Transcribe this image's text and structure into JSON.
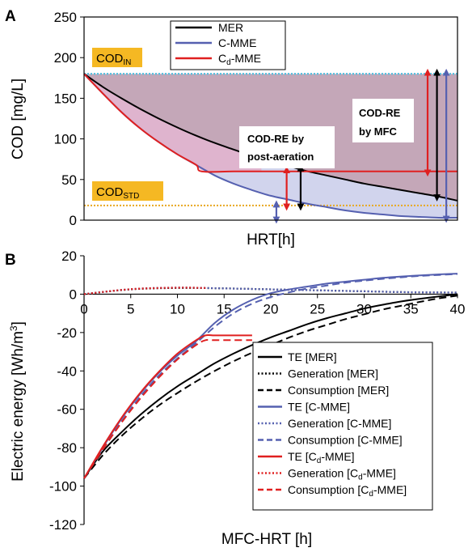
{
  "chart_data": [
    {
      "panel": "A",
      "type": "line",
      "xlabel": "HRT[h]",
      "ylabel": "COD [mg/L]",
      "xlim": [
        0,
        40
      ],
      "ylim": [
        0,
        250
      ],
      "yticks": [
        0,
        50,
        100,
        150,
        200,
        250
      ],
      "grid": false,
      "legend_position": "top-center",
      "cod_in": {
        "label": "COD",
        "sub": "IN",
        "value": 180,
        "color": "#5bc0de"
      },
      "cod_std": {
        "label": "COD",
        "sub": "STD",
        "value": 18,
        "color": "#e8a820"
      },
      "annotations": [
        {
          "lines": [
            "COD-RE by",
            "post-aeration"
          ]
        },
        {
          "lines": [
            "COD-RE",
            "by MFC"
          ]
        }
      ],
      "series": [
        {
          "name": "MER",
          "color": "#000000",
          "x": [
            0,
            2,
            4,
            6,
            8,
            10,
            12,
            14,
            16,
            18,
            20,
            22,
            24,
            26,
            28,
            30,
            32,
            34,
            36,
            38,
            40
          ],
          "y": [
            180,
            164,
            150,
            137,
            125,
            114,
            104,
            95,
            87,
            79,
            72,
            66,
            60,
            55,
            50,
            45,
            41,
            37,
            33,
            29,
            24
          ]
        },
        {
          "name": "C-MME",
          "color": "#5560b0",
          "x": [
            0,
            2,
            4,
            6,
            8,
            10,
            12,
            14,
            16,
            18,
            20,
            22,
            24,
            26,
            28,
            30,
            32,
            34,
            36,
            38,
            40
          ],
          "y": [
            180,
            156,
            133,
            113,
            96,
            81,
            68,
            55,
            45,
            37,
            30,
            25,
            20,
            16,
            12,
            9,
            7,
            5,
            4,
            3,
            3
          ]
        },
        {
          "name": "C",
          "sub": "d",
          "suffix": "-MME",
          "color": "#e02020",
          "x": [
            0,
            2,
            4,
            6,
            8,
            10,
            12,
            12.6,
            16,
            20,
            24,
            28,
            32,
            36,
            40
          ],
          "y": [
            180,
            156,
            133,
            113,
            96,
            81,
            68,
            60,
            60,
            60,
            60,
            60,
            60,
            60,
            60
          ]
        }
      ]
    },
    {
      "panel": "B",
      "type": "line",
      "xlabel": "MFC-HRT [h]",
      "ylabel": "Electric energy [Wh/m",
      "ylabel_sup": "3",
      "ylabel_end": "]",
      "xlim": [
        0,
        40
      ],
      "ylim": [
        -120,
        20
      ],
      "xticks": [
        0,
        5,
        10,
        15,
        20,
        25,
        30,
        35,
        40
      ],
      "yticks": [
        20,
        0,
        -20,
        -40,
        -60,
        -80,
        -100,
        -120
      ],
      "grid": false,
      "legend_position": "bottom-right",
      "series": [
        {
          "name": "TE [MER]",
          "color": "#000000",
          "dash": "solid",
          "x": [
            0,
            2,
            4,
            6,
            8,
            10,
            12,
            14,
            16,
            18,
            20,
            22,
            24,
            26,
            28,
            30,
            32,
            34,
            36,
            38,
            40
          ],
          "y": [
            -96,
            -82,
            -72,
            -63,
            -55,
            -48,
            -42,
            -36,
            -31,
            -26.5,
            -22.5,
            -19,
            -15.5,
            -12.5,
            -10,
            -7.5,
            -5.5,
            -3.8,
            -2.4,
            -1.2,
            0
          ]
        },
        {
          "name": "Generation [MER]",
          "color": "#000000",
          "dash": "dotted",
          "x": [
            0,
            5,
            10,
            15,
            20,
            25,
            30,
            35,
            40
          ],
          "y": [
            0,
            2.5,
            3.2,
            3,
            2.5,
            2,
            1.5,
            1,
            0.8
          ]
        },
        {
          "name": "Consumption  [MER]",
          "color": "#000000",
          "dash": "dashed",
          "x": [
            0,
            2,
            4,
            6,
            8,
            10,
            12,
            14,
            16,
            18,
            20,
            22,
            24,
            26,
            28,
            30,
            32,
            34,
            36,
            38,
            40
          ],
          "y": [
            -96,
            -84,
            -74,
            -65.5,
            -58,
            -51.5,
            -45.5,
            -40,
            -35,
            -30.5,
            -26.5,
            -22.5,
            -19,
            -16,
            -13,
            -10.5,
            -8,
            -6,
            -4,
            -2.2,
            -0.8
          ]
        },
        {
          "name": "TE [C-MME]",
          "color": "#5560b0",
          "dash": "solid",
          "x": [
            0,
            2,
            4,
            6,
            8,
            10,
            12,
            14,
            16,
            18,
            20,
            22,
            24,
            26,
            28,
            30,
            32,
            34,
            36,
            38,
            40
          ],
          "y": [
            -96,
            -80,
            -65,
            -52,
            -41,
            -32,
            -24.5,
            -15,
            -8,
            -3,
            0.5,
            2.5,
            4,
            5.5,
            6.5,
            7.5,
            8.5,
            9.2,
            9.8,
            10.3,
            10.7
          ]
        },
        {
          "name": "Generation [C-MME]",
          "color": "#5560b0",
          "dash": "dotted",
          "x": [
            0,
            5,
            10,
            15,
            20,
            25,
            30,
            35,
            40
          ],
          "y": [
            0,
            2.6,
            3.4,
            3,
            2.5,
            2,
            1.5,
            1,
            0.8
          ]
        },
        {
          "name": "Consumption [C-MME]",
          "color": "#5560b0",
          "dash": "dashed",
          "x": [
            0,
            2,
            4,
            6,
            8,
            10,
            12,
            14,
            16,
            18,
            20,
            22,
            24,
            26,
            28,
            30,
            32,
            34,
            36,
            38,
            40
          ],
          "y": [
            -96,
            -81,
            -66.5,
            -53.5,
            -42.5,
            -33.5,
            -25.5,
            -17,
            -10,
            -5,
            -1.5,
            1,
            3,
            4.5,
            6,
            7,
            8,
            8.8,
            9.5,
            10,
            10.5
          ]
        },
        {
          "name": "TE [C",
          "sub": "d",
          "suffix": "-MME]",
          "color": "#e02020",
          "dash": "solid",
          "x": [
            0,
            2,
            4,
            6,
            8,
            10,
            12,
            13,
            14,
            16,
            18
          ],
          "y": [
            -96,
            -79.5,
            -64.5,
            -51.5,
            -40.5,
            -31,
            -24,
            -21.5,
            -21.5,
            -21.5,
            -21.5
          ]
        },
        {
          "name": "Generation [C",
          "sub": "d",
          "suffix": "-MME]",
          "color": "#e02020",
          "dash": "dotted",
          "x": [
            0,
            5,
            10,
            13
          ],
          "y": [
            0,
            2.6,
            3.4,
            3.2
          ]
        },
        {
          "name": "Consumption  [C",
          "sub": "d",
          "suffix": "-MME]",
          "color": "#e02020",
          "dash": "dashed",
          "x": [
            0,
            2,
            4,
            6,
            8,
            10,
            12,
            13,
            14,
            16,
            18
          ],
          "y": [
            -96,
            -81,
            -67,
            -54.5,
            -43.5,
            -34,
            -26.5,
            -24,
            -24,
            -24,
            -24
          ]
        }
      ]
    }
  ]
}
